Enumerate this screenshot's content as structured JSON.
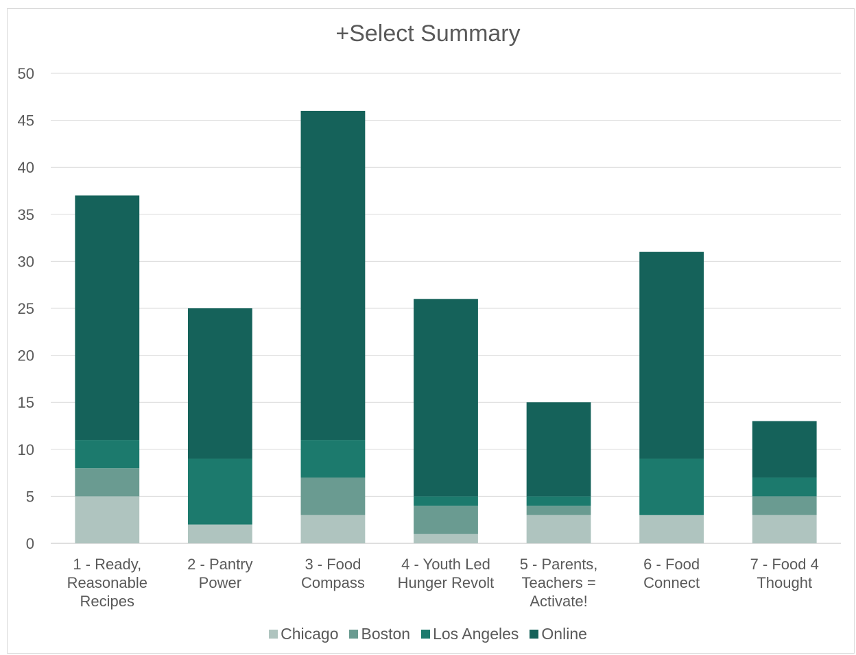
{
  "chart_data": {
    "type": "bar",
    "stacked": true,
    "title": "+Select Summary",
    "categories": [
      [
        "1 - Ready,",
        "Reasonable",
        "Recipes"
      ],
      [
        "2 - Pantry",
        "Power"
      ],
      [
        "3 - Food",
        "Compass"
      ],
      [
        "4 - Youth Led",
        "Hunger Revolt"
      ],
      [
        "5 - Parents,",
        "Teachers =",
        "Activate!"
      ],
      [
        "6 - Food",
        "Connect"
      ],
      [
        "7 - Food 4",
        "Thought"
      ]
    ],
    "series": [
      {
        "name": "Chicago",
        "color": "#afc4bf",
        "values": [
          5,
          2,
          3,
          1,
          3,
          3,
          3
        ]
      },
      {
        "name": "Boston",
        "color": "#6a9b91",
        "values": [
          3,
          0,
          4,
          3,
          1,
          0,
          2
        ]
      },
      {
        "name": "Los Angeles",
        "color": "#1c7a6d",
        "values": [
          3,
          7,
          4,
          1,
          1,
          6,
          2
        ]
      },
      {
        "name": "Online",
        "color": "#15625a",
        "values": [
          26,
          16,
          35,
          21,
          10,
          22,
          6
        ]
      }
    ],
    "ylim": [
      0,
      50
    ],
    "yticks": [
      0,
      5,
      10,
      15,
      20,
      25,
      30,
      35,
      40,
      45,
      50
    ],
    "grid": true,
    "legend_position": "bottom",
    "xlabel": "",
    "ylabel": ""
  }
}
